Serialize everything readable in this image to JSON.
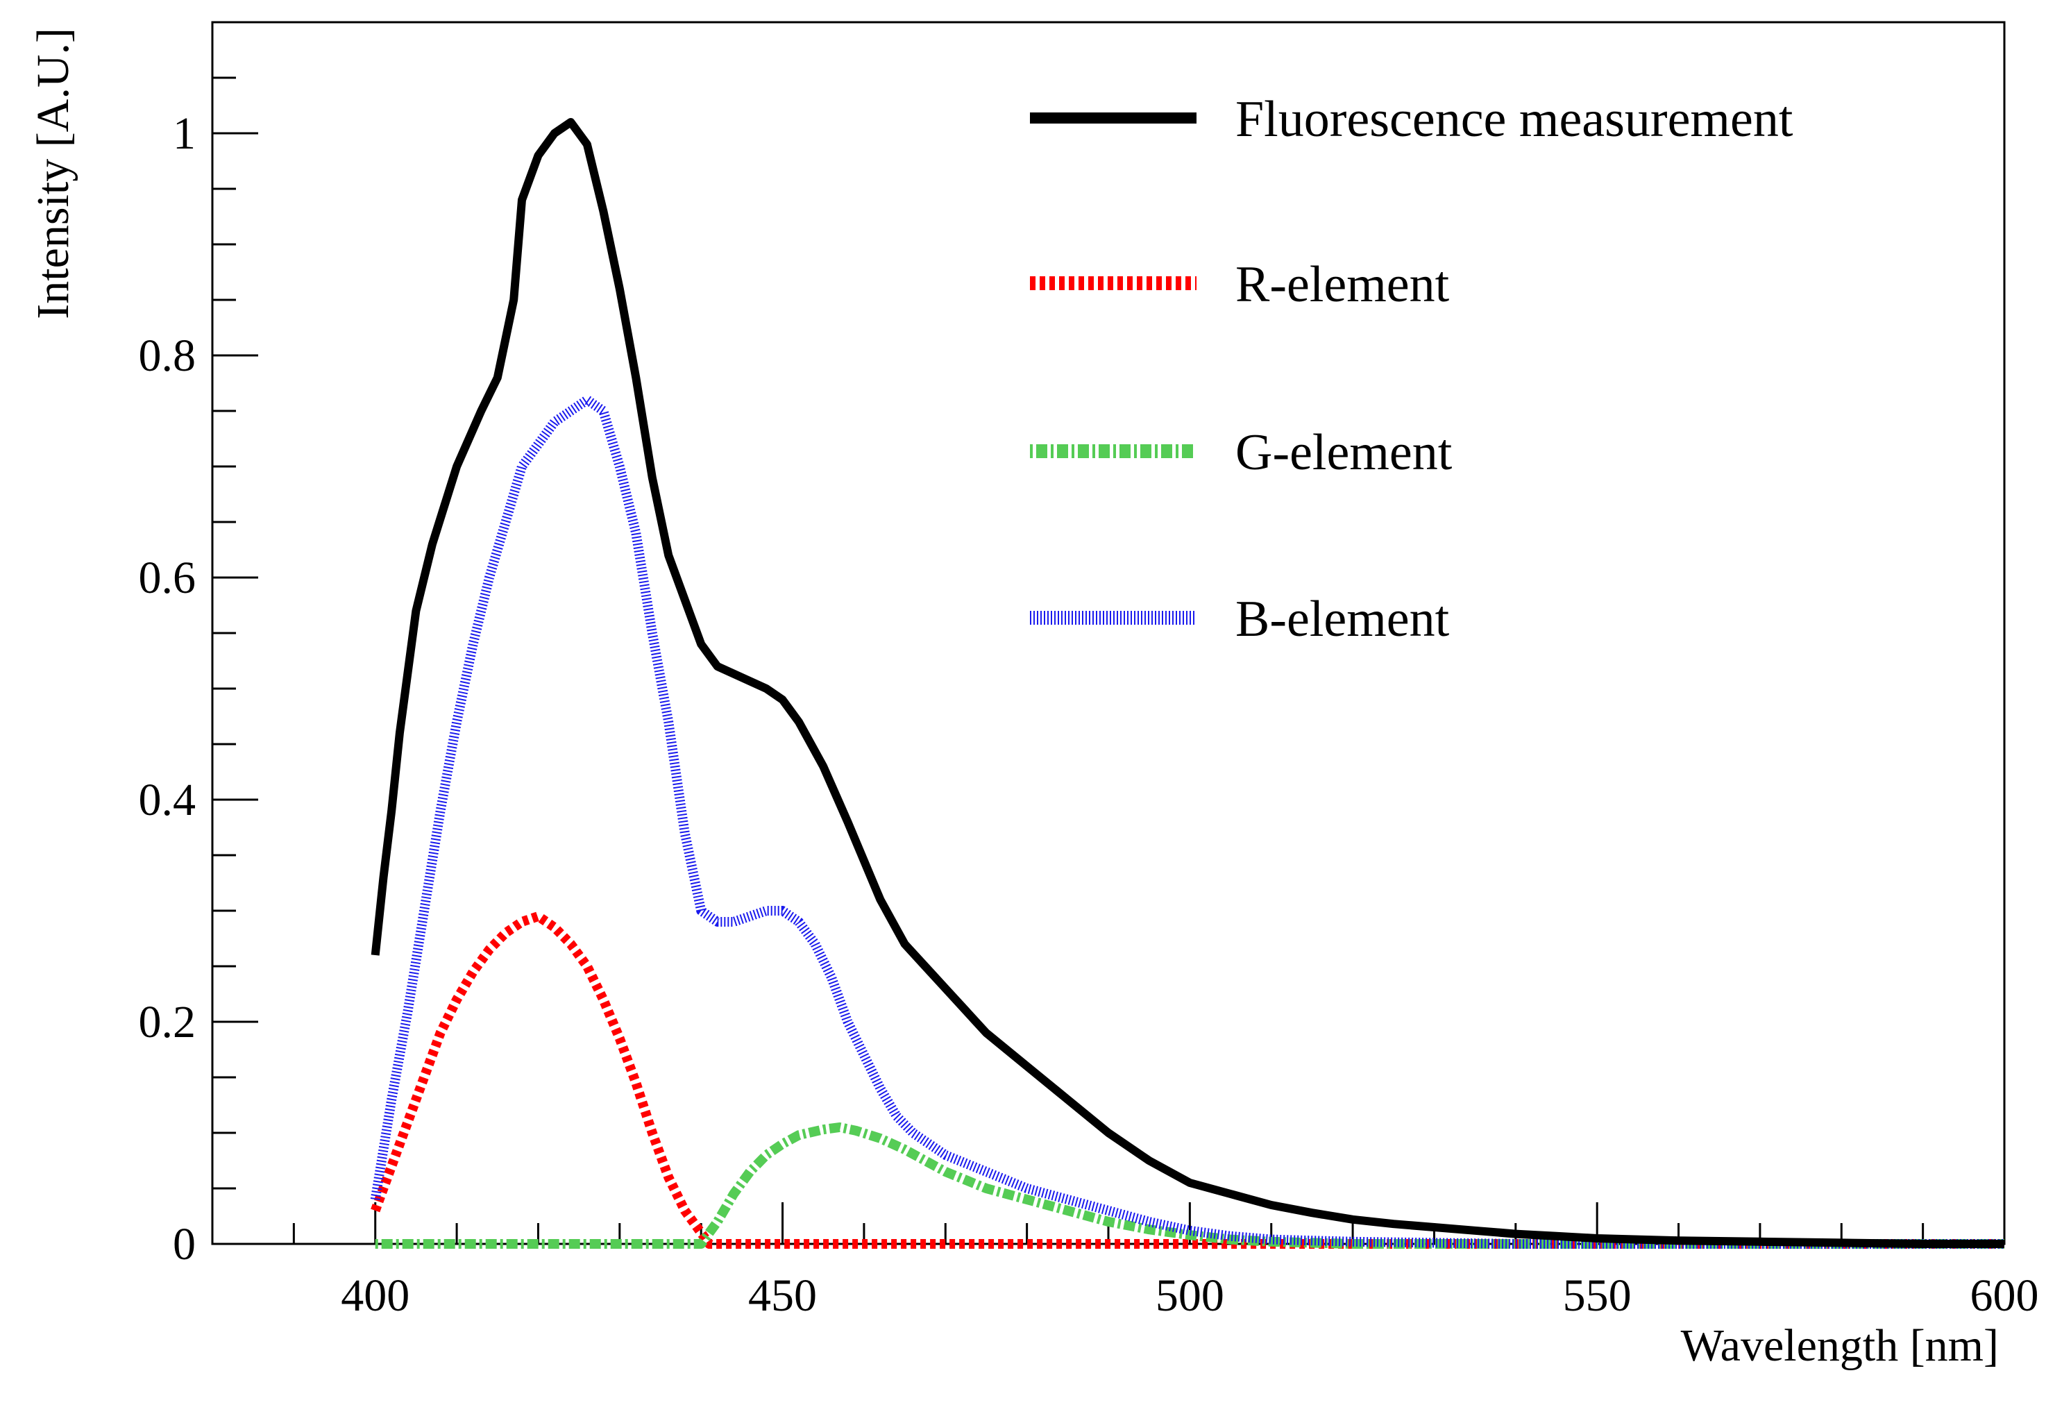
{
  "chart_data": {
    "type": "line",
    "title": "",
    "xlabel": "Wavelength [nm]",
    "ylabel": "Intensity [A.U.]",
    "xlim": [
      380,
      600
    ],
    "ylim": [
      0,
      1.1
    ],
    "grid": false,
    "legend_position": "top-right",
    "x_ticks": [
      {
        "value": 400,
        "label": "400"
      },
      {
        "value": 450,
        "label": "450"
      },
      {
        "value": 500,
        "label": "500"
      },
      {
        "value": 550,
        "label": "550"
      },
      {
        "value": 600,
        "label": "600"
      }
    ],
    "y_ticks": [
      {
        "value": 0,
        "label": "0"
      },
      {
        "value": 0.2,
        "label": "0.2"
      },
      {
        "value": 0.4,
        "label": "0.4"
      },
      {
        "value": 0.6,
        "label": "0.6"
      },
      {
        "value": 0.8,
        "label": "0.8"
      },
      {
        "value": 1,
        "label": "1"
      }
    ],
    "series": [
      {
        "name": "Fluorescence measurement",
        "color": "#000000",
        "style": "solid",
        "x": [
          400,
          401,
          402,
          403,
          405,
          407,
          410,
          413,
          415,
          417,
          418,
          420,
          422,
          424,
          426,
          428,
          430,
          432,
          434,
          436,
          438,
          440,
          442,
          445,
          448,
          450,
          452,
          455,
          458,
          462,
          465,
          470,
          475,
          480,
          485,
          490,
          495,
          500,
          505,
          510,
          515,
          520,
          525,
          530,
          535,
          540,
          545,
          550,
          560,
          570,
          580,
          590,
          600
        ],
        "y": [
          0.26,
          0.33,
          0.39,
          0.46,
          0.57,
          0.63,
          0.7,
          0.75,
          0.78,
          0.85,
          0.94,
          0.98,
          1.0,
          1.01,
          0.99,
          0.93,
          0.86,
          0.78,
          0.69,
          0.62,
          0.58,
          0.54,
          0.52,
          0.51,
          0.5,
          0.49,
          0.47,
          0.43,
          0.38,
          0.31,
          0.27,
          0.23,
          0.19,
          0.16,
          0.13,
          0.1,
          0.075,
          0.055,
          0.045,
          0.035,
          0.028,
          0.022,
          0.018,
          0.015,
          0.012,
          0.009,
          0.007,
          0.005,
          0.003,
          0.002,
          0.001,
          0.0,
          0.0
        ]
      },
      {
        "name": "R-element",
        "color": "#ff0000",
        "style": "dashed",
        "x": [
          400,
          402,
          404,
          406,
          408,
          410,
          412,
          414,
          416,
          418,
          420,
          422,
          424,
          426,
          428,
          430,
          432,
          434,
          436,
          438,
          440,
          441,
          445,
          450,
          460,
          480,
          500,
          520,
          540,
          560,
          580,
          600
        ],
        "y": [
          0.03,
          0.07,
          0.11,
          0.15,
          0.19,
          0.22,
          0.245,
          0.265,
          0.28,
          0.29,
          0.295,
          0.285,
          0.27,
          0.25,
          0.22,
          0.185,
          0.145,
          0.1,
          0.06,
          0.03,
          0.01,
          0.0,
          0.0,
          0.0,
          0.0,
          0.0,
          0.0,
          0.0,
          0.0,
          0.0,
          0.0,
          0.0
        ],
        "stroke_width": 14,
        "dash": "8 6"
      },
      {
        "name": "G-element",
        "color": "#55cc55",
        "style": "dash-dot",
        "x": [
          400,
          410,
          420,
          430,
          437,
          440,
          442,
          444,
          446,
          448,
          450,
          452,
          455,
          457,
          459,
          462,
          465,
          470,
          475,
          480,
          485,
          490,
          495,
          500,
          505,
          510,
          520,
          540,
          560,
          580,
          600
        ],
        "y": [
          0.0,
          0.0,
          0.0,
          0.0,
          0.0,
          0.0,
          0.02,
          0.045,
          0.065,
          0.08,
          0.09,
          0.098,
          0.103,
          0.105,
          0.102,
          0.095,
          0.085,
          0.065,
          0.05,
          0.04,
          0.03,
          0.02,
          0.013,
          0.008,
          0.004,
          0.002,
          0.0,
          0.0,
          0.0,
          0.0,
          0.0
        ],
        "stroke_width": 14,
        "dash": "4 5 16 5"
      },
      {
        "name": "B-element",
        "color": "#1a1aee",
        "style": "dotted",
        "x": [
          400,
          402,
          404,
          406,
          408,
          410,
          412,
          414,
          416,
          418,
          420,
          422,
          424,
          426,
          428,
          430,
          432,
          434,
          436,
          438,
          440,
          442,
          444,
          446,
          448,
          450,
          452,
          454,
          456,
          458,
          460,
          462,
          464,
          466,
          470,
          475,
          480,
          485,
          490,
          495,
          500,
          505,
          510,
          520,
          530,
          540,
          560,
          580,
          600
        ],
        "y": [
          0.04,
          0.13,
          0.21,
          0.3,
          0.39,
          0.47,
          0.54,
          0.6,
          0.65,
          0.7,
          0.72,
          0.74,
          0.75,
          0.76,
          0.75,
          0.7,
          0.64,
          0.55,
          0.47,
          0.37,
          0.3,
          0.29,
          0.29,
          0.295,
          0.3,
          0.3,
          0.29,
          0.27,
          0.24,
          0.2,
          0.17,
          0.14,
          0.115,
          0.1,
          0.08,
          0.065,
          0.05,
          0.04,
          0.03,
          0.02,
          0.012,
          0.007,
          0.004,
          0.002,
          0.001,
          0.0,
          0.0,
          0.0,
          0.0
        ],
        "stroke_width": 14,
        "dash": "2 3"
      }
    ]
  }
}
